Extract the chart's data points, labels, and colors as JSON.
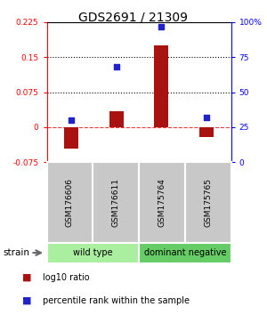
{
  "title": "GDS2691 / 21309",
  "samples": [
    "GSM176606",
    "GSM176611",
    "GSM175764",
    "GSM175765"
  ],
  "log10_ratio": [
    -0.045,
    0.035,
    0.175,
    -0.022
  ],
  "percentile_rank": [
    30,
    68,
    97,
    32
  ],
  "bar_color": "#aa1111",
  "scatter_color": "#2222cc",
  "ylim_left": [
    -0.075,
    0.225
  ],
  "ylim_right": [
    0,
    100
  ],
  "yticks_left": [
    -0.075,
    0,
    0.075,
    0.15,
    0.225
  ],
  "ytick_labels_left": [
    "-0.075",
    "0",
    "0.075",
    "0.15",
    "0.225"
  ],
  "yticks_right": [
    0,
    25,
    50,
    75,
    100
  ],
  "ytick_labels_right": [
    "0",
    "25",
    "50",
    "75",
    "100%"
  ],
  "hlines": [
    0.075,
    0.15
  ],
  "zero_line": 0,
  "bg_color": "#ffffff",
  "plot_bg": "#ffffff",
  "strain_label": "strain",
  "legend_ratio_label": "log10 ratio",
  "legend_pct_label": "percentile rank within the sample",
  "group_defs": [
    {
      "start": 0,
      "end": 2,
      "label": "wild type",
      "color": "#aaeea0"
    },
    {
      "start": 2,
      "end": 4,
      "label": "dominant negative",
      "color": "#66cc66"
    }
  ],
  "sample_box_color": "#c8c8c8"
}
